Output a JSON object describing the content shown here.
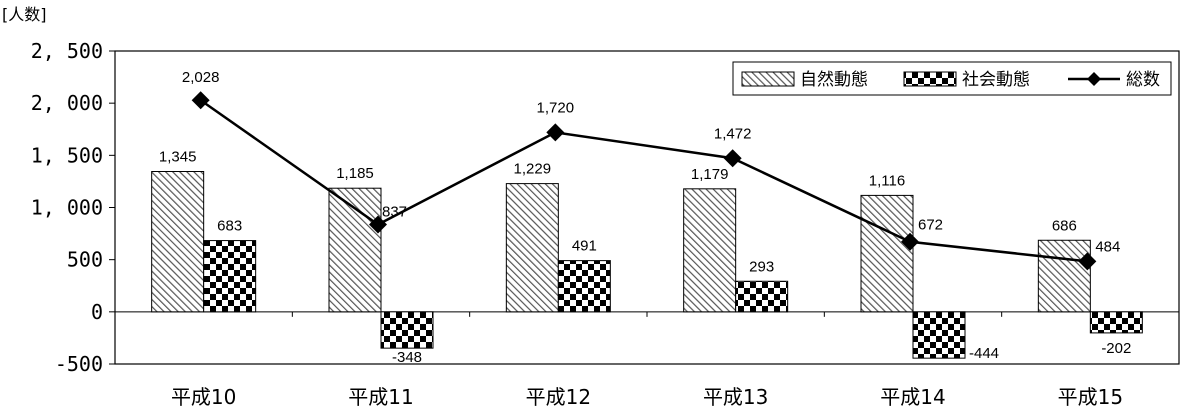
{
  "chart_data": {
    "type": "bar",
    "title": "",
    "ylabel": "[人数]",
    "xlabel": "",
    "ylim": [
      -500,
      2500
    ],
    "yticks": [
      2500,
      2000,
      1500,
      1000,
      500,
      0,
      -500
    ],
    "ytick_labels": [
      "2, 500",
      "2, 000",
      "1, 500",
      "1, 000",
      "500",
      "0",
      "-500"
    ],
    "categories": [
      "平成10",
      "平成11",
      "平成12",
      "平成13",
      "平成14",
      "平成15"
    ],
    "series": [
      {
        "name": "自然動態",
        "kind": "bar",
        "pattern": "diagonal-hatch",
        "values": [
          1345,
          1185,
          1229,
          1179,
          1116,
          686
        ],
        "labels": [
          "1,345",
          "1,185",
          "1,229",
          "1,179",
          "1,116",
          "686"
        ]
      },
      {
        "name": "社会動態",
        "kind": "bar",
        "pattern": "checkerboard",
        "values": [
          683,
          -348,
          491,
          293,
          -444,
          -202
        ],
        "labels": [
          "683",
          "-348",
          "491",
          "293",
          "-444",
          "-202"
        ]
      },
      {
        "name": "総数",
        "kind": "line",
        "marker": "diamond",
        "values": [
          2028,
          837,
          1720,
          1472,
          672,
          484
        ],
        "labels": [
          "2,028",
          "837",
          "1,720",
          "1,472",
          "672",
          "484"
        ]
      }
    ],
    "legend_position": "top-right",
    "grid": false
  }
}
